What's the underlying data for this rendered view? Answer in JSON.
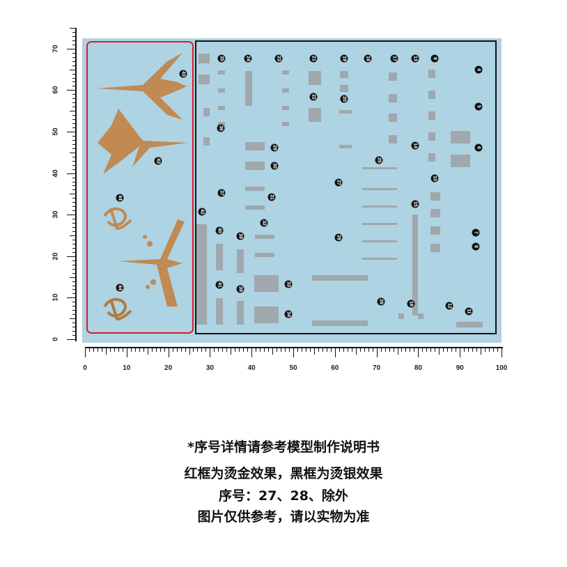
{
  "ruler": {
    "vertical_labels": [
      "0",
      "10",
      "20",
      "30",
      "40",
      "50",
      "60",
      "70"
    ],
    "horizontal_labels": [
      "0",
      "10",
      "20",
      "30",
      "40",
      "50",
      "60",
      "70",
      "80",
      "90",
      "100"
    ]
  },
  "colors": {
    "sheet": "#aed3e3",
    "gold_frame": "#d0202a",
    "silver_frame": "#111111",
    "gold": "#c08a52",
    "silver": "#9a9a9a"
  },
  "gold_badges": [
    "43",
    "43",
    "44",
    "44"
  ],
  "silver_badges": [
    "35",
    "24",
    "23",
    "21",
    "19",
    "18",
    "17",
    "13",
    "9",
    "4",
    "22",
    "20",
    "5",
    "36",
    "29",
    "14",
    "6",
    "25",
    "30",
    "27",
    "10",
    "37",
    "31",
    "15",
    "42",
    "32",
    "40",
    "39",
    "28",
    "7",
    "8",
    "33",
    "41",
    "39",
    "26",
    "16",
    "12",
    "11",
    "34"
  ],
  "notes": [
    "*序号详情请参考模型制作说明书",
    "红框为烫金效果，黑框为烫银效果",
    "序号：27、28、除外",
    "图片仅供参考，请以实物为准"
  ]
}
